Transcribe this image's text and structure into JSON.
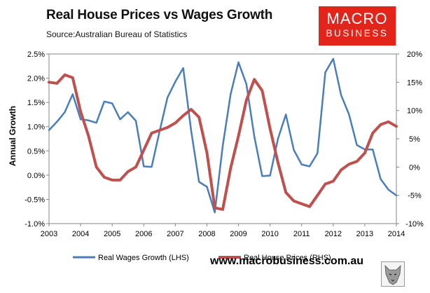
{
  "header": {
    "title": "Real House Prices vs Wages Growth",
    "source": "Source:Australian Bureau of Statistics"
  },
  "logo": {
    "line1": "MACRO",
    "line2": "BUSINESS",
    "color": "#e2241b"
  },
  "footer": {
    "url": "www.macrobusiness.com.au"
  },
  "chart_data": {
    "type": "line",
    "title": "Real House Prices vs Wages Growth",
    "ylabel": "Annual Growth",
    "xlim": [
      2003,
      2014
    ],
    "ylim_left": [
      -0.01,
      0.025
    ],
    "ylim_right": [
      -0.1,
      0.2
    ],
    "x_ticks": [
      "2003",
      "2004",
      "2005",
      "2006",
      "2007",
      "2008",
      "2009",
      "2010",
      "2011",
      "2012",
      "2013",
      "2014"
    ],
    "y_ticks_left": [
      "2.5%",
      "2.0%",
      "1.5%",
      "1.0%",
      "0.5%",
      "0.0%",
      "-0.5%",
      "-1.0%"
    ],
    "y_ticks_right": [
      "20%",
      "15%",
      "10%",
      "5%",
      "0%",
      "-5%",
      "-10%"
    ],
    "series": [
      {
        "name": "Real Wages Growth (LHS)",
        "axis": "left",
        "color": "#4a7ebb",
        "x": [
          2003.0,
          2003.25,
          2003.5,
          2003.75,
          2004.0,
          2004.25,
          2004.5,
          2004.75,
          2005.0,
          2005.25,
          2005.5,
          2005.75,
          2006.0,
          2006.25,
          2006.5,
          2006.75,
          2007.0,
          2007.25,
          2007.5,
          2007.75,
          2008.0,
          2008.25,
          2008.5,
          2008.75,
          2009.0,
          2009.25,
          2009.5,
          2009.75,
          2010.0,
          2010.25,
          2010.5,
          2010.75,
          2011.0,
          2011.25,
          2011.5,
          2011.75,
          2012.0,
          2012.25,
          2012.5,
          2012.75,
          2013.0,
          2013.25,
          2013.5,
          2013.75,
          2014.0
        ],
        "values": [
          0.0093,
          0.011,
          0.013,
          0.0167,
          0.0115,
          0.0113,
          0.0108,
          0.0152,
          0.0148,
          0.0115,
          0.013,
          0.0112,
          0.0018,
          0.0017,
          0.009,
          0.016,
          0.0193,
          0.0221,
          0.0092,
          -0.0014,
          -0.0024,
          -0.0077,
          0.006,
          0.0167,
          0.0233,
          0.0188,
          0.008,
          -0.0002,
          -0.0001,
          0.0075,
          0.0125,
          0.0052,
          0.0022,
          0.0018,
          0.0045,
          0.0212,
          0.024,
          0.0165,
          0.0125,
          0.0062,
          0.0053,
          0.0053,
          -0.0008,
          -0.003,
          -0.0042
        ]
      },
      {
        "name": "Real House Prices (RHS)",
        "axis": "right",
        "color": "#c0504d",
        "x": [
          2003.0,
          2003.25,
          2003.5,
          2003.75,
          2004.0,
          2004.25,
          2004.5,
          2004.75,
          2005.0,
          2005.25,
          2005.5,
          2005.75,
          2006.0,
          2006.25,
          2006.5,
          2006.75,
          2007.0,
          2007.25,
          2007.5,
          2007.75,
          2008.0,
          2008.25,
          2008.5,
          2008.75,
          2009.0,
          2009.25,
          2009.5,
          2009.75,
          2010.0,
          2010.25,
          2010.5,
          2010.75,
          2011.0,
          2011.25,
          2011.5,
          2011.75,
          2012.0,
          2012.25,
          2012.5,
          2012.75,
          2013.0,
          2013.25,
          2013.5,
          2013.75,
          2014.0
        ],
        "values": [
          0.15,
          0.148,
          0.163,
          0.158,
          0.098,
          0.055,
          0.0,
          -0.018,
          -0.023,
          -0.023,
          -0.008,
          0.0,
          0.03,
          0.06,
          0.065,
          0.07,
          0.078,
          0.091,
          0.102,
          0.088,
          0.025,
          -0.072,
          -0.075,
          -0.002,
          0.055,
          0.118,
          0.155,
          0.135,
          0.068,
          0.008,
          -0.045,
          -0.06,
          -0.065,
          -0.07,
          -0.05,
          -0.03,
          -0.025,
          -0.005,
          0.005,
          0.01,
          0.025,
          0.06,
          0.075,
          0.08,
          0.072
        ]
      }
    ]
  }
}
